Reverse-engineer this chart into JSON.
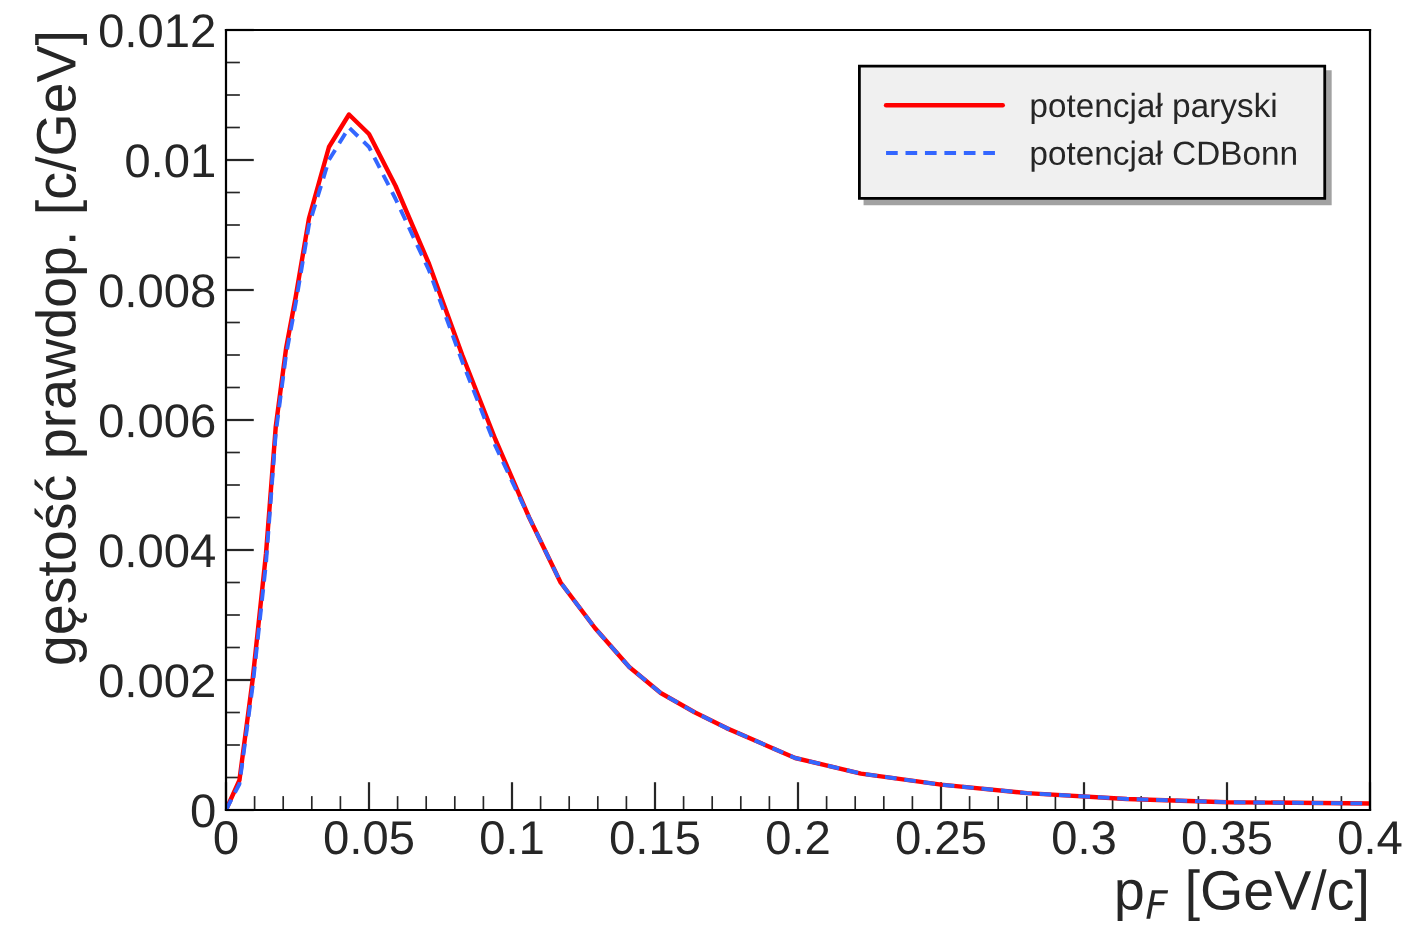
{
  "chart_data": {
    "type": "line",
    "xlabel": "p$_{F}$ [GeV/c]",
    "ylabel": "gęstość prawdop. [c/GeV]",
    "x": [
      0,
      0.0047,
      0.0093,
      0.014,
      0.0174,
      0.021,
      0.0244,
      0.029,
      0.036,
      0.043,
      0.05,
      0.0593,
      0.071,
      0.0826,
      0.0942,
      0.106,
      0.117,
      0.129,
      0.141,
      0.152,
      0.164,
      0.175,
      0.199,
      0.222,
      0.25,
      0.28,
      0.315,
      0.35,
      0.4
    ],
    "series": [
      {
        "name": "potencjał paryski",
        "color": "#ff0000",
        "line_style": "solid",
        "values": [
          0,
          0.00046,
          0.002,
          0.00395,
          0.0059,
          0.0071,
          0.0079,
          0.0091,
          0.0102,
          0.0107,
          0.0104,
          0.0096,
          0.0084,
          0.007,
          0.0057,
          0.0045,
          0.0035,
          0.0028,
          0.0022,
          0.0018,
          0.0015,
          0.00126,
          0.0008,
          0.00056,
          0.00039,
          0.00026,
          0.00017,
          0.00012,
          0.0001
        ]
      },
      {
        "name": "potencjał CDBonn",
        "color": "#3366ff",
        "line_style": "dashed",
        "values": [
          0,
          0.0004,
          0.0019,
          0.0038,
          0.0058,
          0.007,
          0.0078,
          0.009,
          0.01,
          0.0105,
          0.0102,
          0.0094,
          0.0083,
          0.0069,
          0.0056,
          0.0045,
          0.0035,
          0.0028,
          0.0022,
          0.0018,
          0.0015,
          0.00126,
          0.0008,
          0.00056,
          0.00039,
          0.00026,
          0.00017,
          0.00012,
          0.0001
        ]
      }
    ],
    "xlim": [
      0,
      0.4
    ],
    "ylim": [
      0,
      0.012
    ],
    "xticks": [
      0,
      0.05,
      0.1,
      0.15,
      0.2,
      0.25,
      0.3,
      0.35,
      0.4
    ],
    "yticks": [
      0,
      0.002,
      0.004,
      0.006,
      0.008,
      0.01,
      0.012
    ],
    "grid": false,
    "legend": "top right",
    "marker": "none"
  }
}
